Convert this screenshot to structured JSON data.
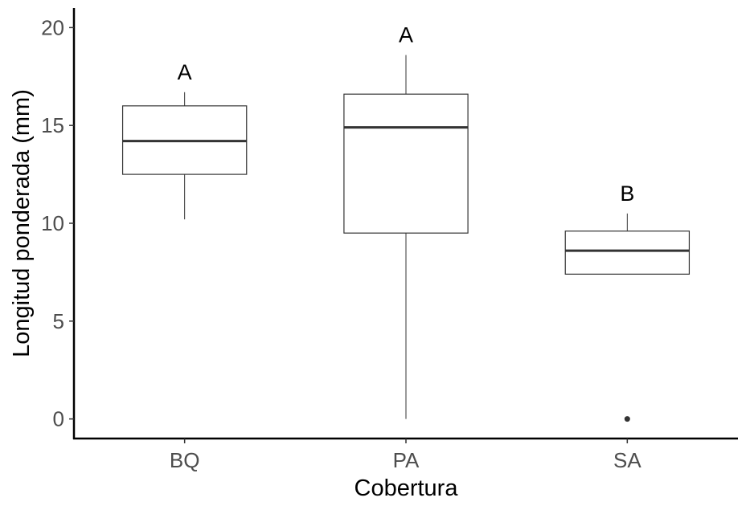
{
  "chart_data": {
    "type": "boxplot",
    "xlabel": "Cobertura",
    "ylabel": "Longitud ponderada (mm)",
    "ylim": [
      -1,
      21
    ],
    "yticks": [
      0,
      5,
      10,
      15,
      20
    ],
    "grid": false,
    "legend": "none",
    "categories": [
      "BQ",
      "PA",
      "SA"
    ],
    "boxes": [
      {
        "category": "BQ",
        "min": 10.2,
        "q1": 12.5,
        "median": 14.2,
        "q3": 16.0,
        "max": 16.7,
        "outliers": [],
        "letter": "A"
      },
      {
        "category": "PA",
        "min": 0.0,
        "q1": 9.5,
        "median": 14.9,
        "q3": 16.6,
        "max": 18.6,
        "outliers": [],
        "letter": "A"
      },
      {
        "category": "SA",
        "min": 7.4,
        "q1": 7.4,
        "median": 8.6,
        "q3": 9.6,
        "max": 10.5,
        "outliers": [
          0.0
        ],
        "letter": "B"
      }
    ],
    "colors": {
      "box_fill": "#ffffff",
      "box_stroke": "#333333",
      "axis": "#000000",
      "tick_text": "#4d4d4d"
    }
  }
}
